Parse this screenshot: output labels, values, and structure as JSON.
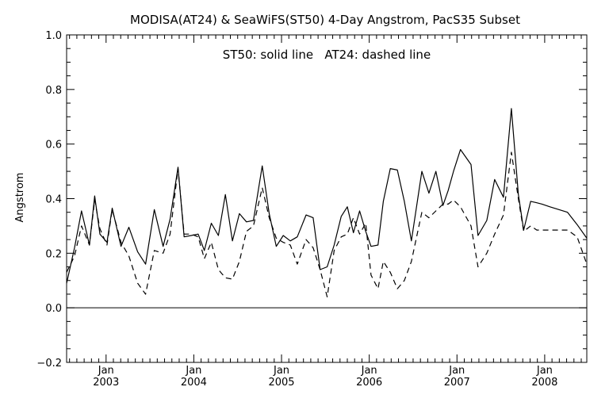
{
  "chart_data": {
    "type": "line",
    "title": "MODISA(AT24) & SeaWiFS(ST50) 4-Day Angstrom, PacS35 Subset",
    "xlabel": "",
    "ylabel": "Angstrom",
    "annotation": "ST50: solid line   AT24: dashed line",
    "xlim": [
      2002.55,
      2008.48
    ],
    "ylim": [
      -0.2,
      1.0
    ],
    "yticks": [
      -0.2,
      0.0,
      0.2,
      0.4,
      0.6,
      0.8,
      1.0
    ],
    "ytick_labels": [
      "−0.2",
      "0.0",
      "0.2",
      "0.4",
      "0.6",
      "0.8",
      "1.0"
    ],
    "xticks": [
      {
        "x": 2003.0,
        "month": "Jan",
        "year": "2003"
      },
      {
        "x": 2004.0,
        "month": "Jan",
        "year": "2004"
      },
      {
        "x": 2005.0,
        "month": "Jan",
        "year": "2005"
      },
      {
        "x": 2006.0,
        "month": "Jan",
        "year": "2006"
      },
      {
        "x": 2007.0,
        "month": "Jan",
        "year": "2007"
      },
      {
        "x": 2008.0,
        "month": "Jan",
        "year": "2008"
      }
    ],
    "reference_line": 0.0,
    "grid": false,
    "series": [
      {
        "style": "solid",
        "x": [
          2002.55,
          2002.64,
          2002.72,
          2002.81,
          2002.87,
          2002.93,
          2003.01,
          2003.07,
          2003.17,
          2003.26,
          2003.36,
          2003.45,
          2003.55,
          2003.65,
          2003.73,
          2003.82,
          2003.89,
          2003.97,
          2004.05,
          2004.12,
          2004.2,
          2004.28,
          2004.36,
          2004.44,
          2004.52,
          2004.6,
          2004.68,
          2004.78,
          2004.86,
          2004.94,
          2005.02,
          2005.1,
          2005.18,
          2005.28,
          2005.36,
          2005.44,
          2005.52,
          2005.6,
          2005.68,
          2005.75,
          2005.82,
          2005.89,
          2005.96,
          2006.02,
          2006.1,
          2006.16,
          2006.24,
          2006.32,
          2006.4,
          2006.48,
          2006.6,
          2006.68,
          2006.76,
          2006.84,
          2006.9,
          2006.96,
          2007.04,
          2007.16,
          2007.24,
          2007.34,
          2007.43,
          2007.53,
          2007.62,
          2007.7,
          2007.76,
          2007.84,
          2007.91,
          2007.97,
          2008.06,
          2008.26,
          2008.37,
          2008.48
        ],
        "values": [
          0.09,
          0.22,
          0.355,
          0.23,
          0.41,
          0.27,
          0.24,
          0.365,
          0.225,
          0.295,
          0.205,
          0.16,
          0.36,
          0.225,
          0.325,
          0.515,
          0.26,
          0.265,
          0.27,
          0.21,
          0.31,
          0.265,
          0.415,
          0.245,
          0.345,
          0.315,
          0.32,
          0.52,
          0.345,
          0.225,
          0.265,
          0.245,
          0.26,
          0.34,
          0.33,
          0.14,
          0.15,
          0.23,
          0.335,
          0.37,
          0.275,
          0.355,
          0.28,
          0.225,
          0.23,
          0.39,
          0.51,
          0.505,
          0.39,
          0.245,
          0.5,
          0.42,
          0.5,
          0.375,
          0.43,
          0.5,
          0.58,
          0.525,
          0.265,
          0.32,
          0.47,
          0.405,
          0.73,
          0.415,
          0.285,
          0.39,
          0.385,
          0.38,
          0.37,
          0.35,
          0.305,
          0.255
        ]
      },
      {
        "style": "dashed",
        "x": [
          2002.55,
          2002.64,
          2002.72,
          2002.81,
          2002.87,
          2002.93,
          2003.01,
          2003.07,
          2003.17,
          2003.26,
          2003.36,
          2003.45,
          2003.55,
          2003.65,
          2003.73,
          2003.82,
          2003.89,
          2003.97,
          2004.05,
          2004.12,
          2004.2,
          2004.28,
          2004.36,
          2004.44,
          2004.52,
          2004.6,
          2004.68,
          2004.78,
          2004.86,
          2004.94,
          2005.02,
          2005.1,
          2005.18,
          2005.28,
          2005.36,
          2005.44,
          2005.52,
          2005.6,
          2005.68,
          2005.75,
          2005.82,
          2005.89,
          2005.96,
          2006.02,
          2006.1,
          2006.16,
          2006.24,
          2006.32,
          2006.4,
          2006.48,
          2006.6,
          2006.68,
          2006.76,
          2006.84,
          2006.9,
          2006.96,
          2007.04,
          2007.16,
          2007.24,
          2007.34,
          2007.43,
          2007.53,
          2007.62,
          2007.7,
          2007.76,
          2007.84,
          2007.91,
          2007.97,
          2008.06,
          2008.26,
          2008.37,
          2008.48
        ],
        "values": [
          0.13,
          0.19,
          0.3,
          0.23,
          0.395,
          0.29,
          0.23,
          0.36,
          0.24,
          0.19,
          0.09,
          0.05,
          0.21,
          0.2,
          0.27,
          0.51,
          0.27,
          0.27,
          0.26,
          0.18,
          0.24,
          0.14,
          0.11,
          0.105,
          0.17,
          0.28,
          0.3,
          0.44,
          0.33,
          0.255,
          0.24,
          0.23,
          0.16,
          0.25,
          0.22,
          0.14,
          0.04,
          0.21,
          0.26,
          0.27,
          0.33,
          0.27,
          0.31,
          0.12,
          0.07,
          0.17,
          0.13,
          0.07,
          0.1,
          0.17,
          0.35,
          0.33,
          0.355,
          0.38,
          0.38,
          0.395,
          0.37,
          0.3,
          0.15,
          0.2,
          0.27,
          0.34,
          0.57,
          0.4,
          0.28,
          0.3,
          0.285,
          0.285,
          0.285,
          0.285,
          0.26,
          0.16
        ]
      }
    ]
  }
}
